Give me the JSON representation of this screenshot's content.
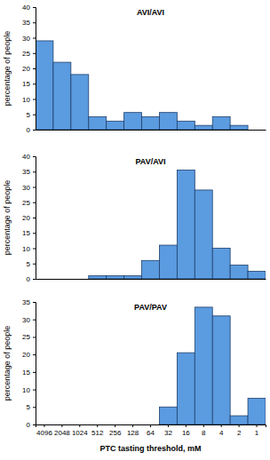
{
  "chart_data": [
    {
      "type": "bar",
      "title": "AVI/AVI",
      "y_label": "percentage of people",
      "categories": [
        "4096",
        "2048",
        "1024",
        "512",
        "256",
        "128",
        "64",
        "32",
        "16",
        "8",
        "4",
        "2",
        "1"
      ],
      "values": [
        29,
        22,
        18,
        4.2,
        2.8,
        5.6,
        4.2,
        5.6,
        2.8,
        1.4,
        4.2,
        1.4,
        0
      ],
      "color": "#5b9bdf",
      "ylim": [
        0,
        40
      ],
      "yticks": [
        0,
        5,
        10,
        15,
        20,
        25,
        30,
        35,
        40
      ],
      "tick_labels": "y"
    },
    {
      "type": "bar",
      "title": "PAV/AVI",
      "y_label": "percentage of people",
      "categories": [
        "4096",
        "2048",
        "1024",
        "512",
        "256",
        "128",
        "64",
        "32",
        "16",
        "8",
        "4",
        "2",
        "1"
      ],
      "values": [
        0,
        0,
        0,
        1,
        1,
        1,
        6,
        11,
        35.5,
        29,
        10,
        4.5,
        2.5
      ],
      "color": "#5b9bdf",
      "ylim": [
        0,
        40
      ],
      "yticks": [
        0,
        5,
        10,
        15,
        20,
        25,
        30,
        35,
        40
      ],
      "tick_labels": "y"
    },
    {
      "type": "bar",
      "title": "PAV/PAV",
      "y_label": "percentage of people",
      "x_label": "PTC tasting threshold, mM",
      "categories": [
        "4096",
        "2048",
        "1024",
        "512",
        "256",
        "128",
        "64",
        "32",
        "16",
        "8",
        "4",
        "2",
        "1"
      ],
      "values": [
        0,
        0,
        0,
        0,
        0,
        0,
        0,
        5,
        20.5,
        33.5,
        31,
        2.5,
        7.5
      ],
      "color": "#5b9bdf",
      "ylim": [
        0,
        35
      ],
      "yticks": [
        0,
        5,
        10,
        15,
        20,
        25,
        30,
        35
      ]
    }
  ]
}
